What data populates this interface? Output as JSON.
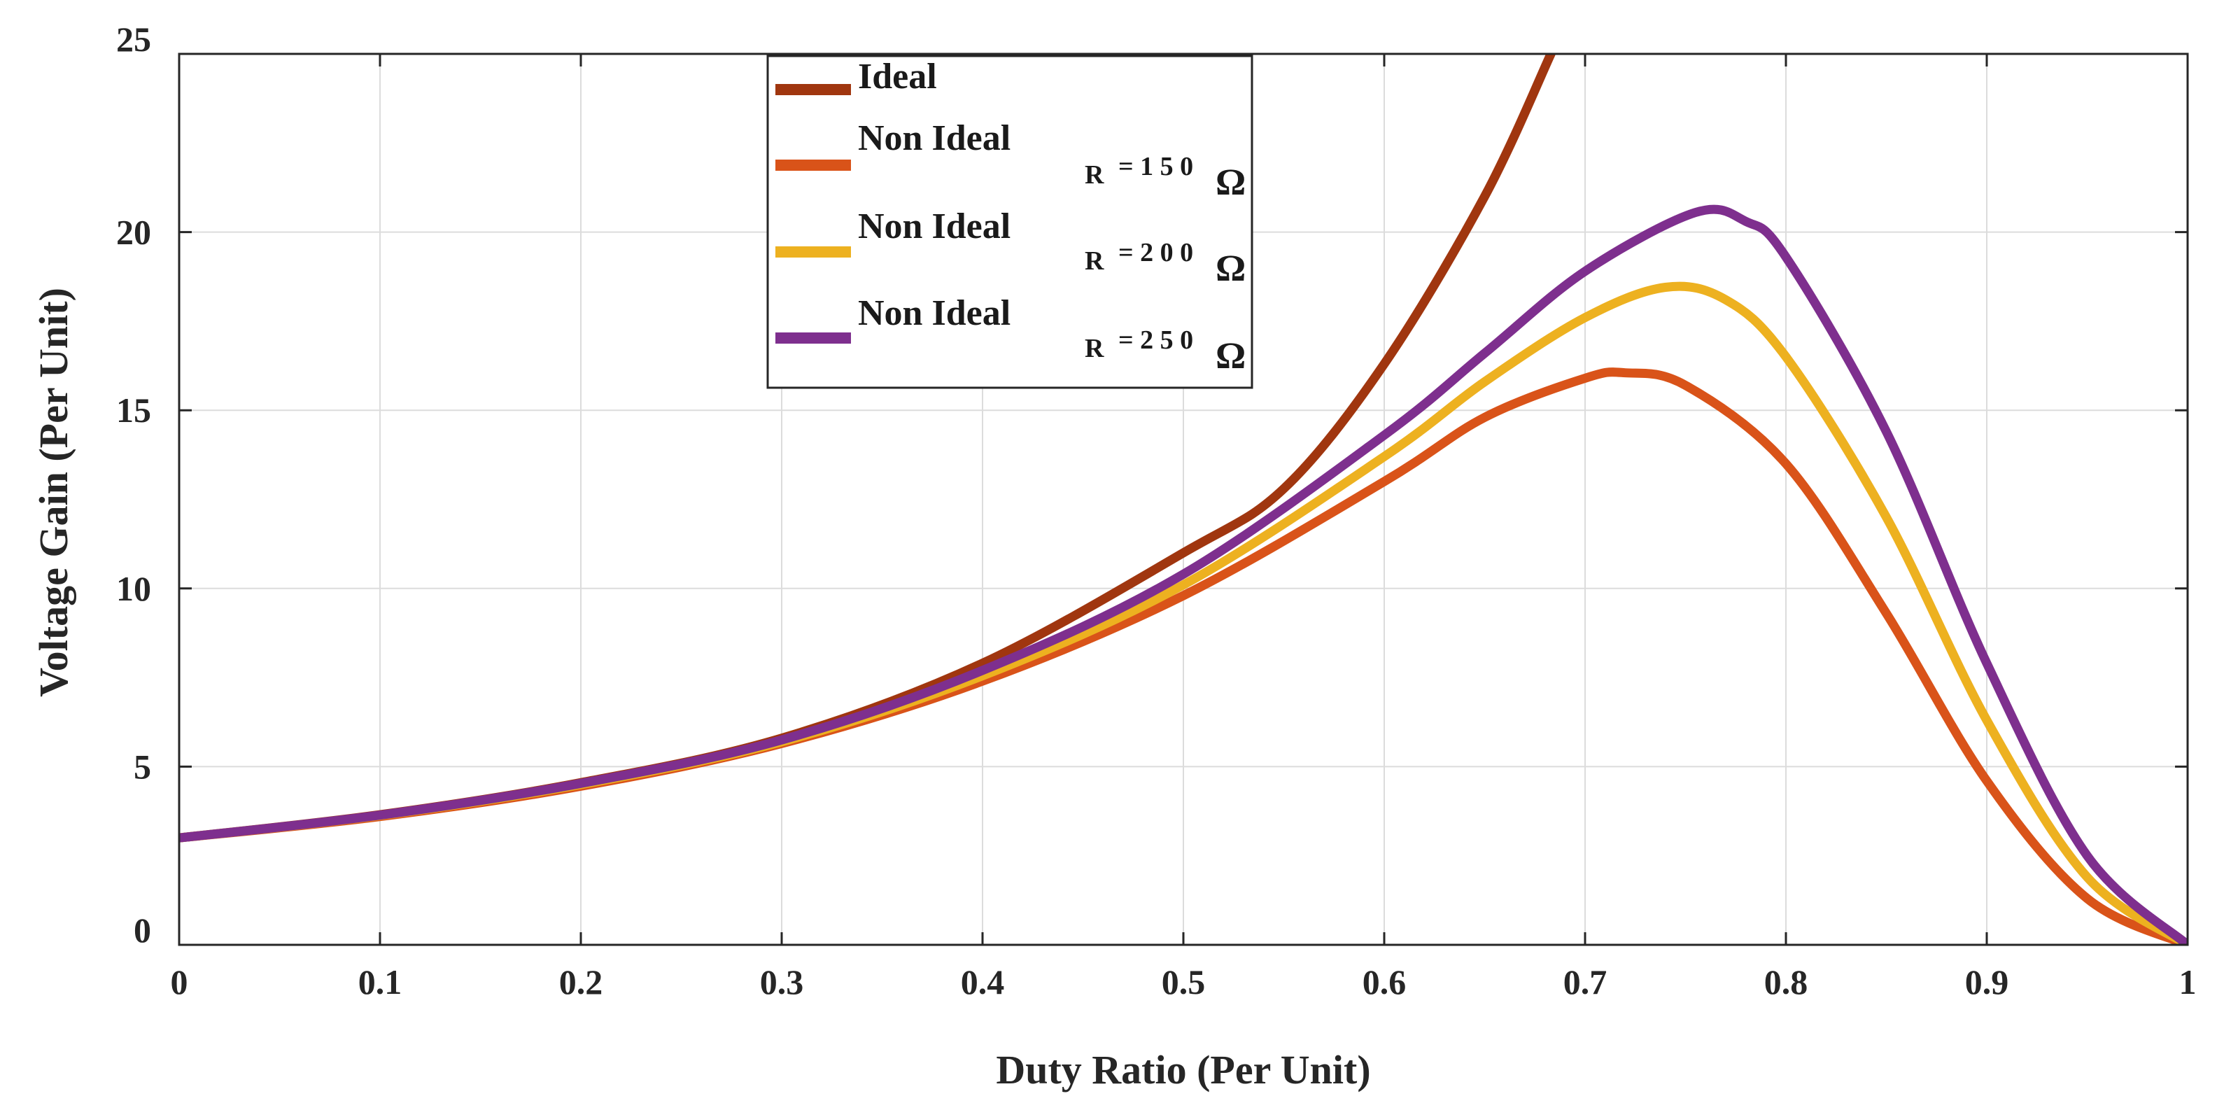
{
  "chart_data": {
    "type": "line",
    "title": "",
    "xlabel": "Duty Ratio (Per Unit)",
    "ylabel": "Voltage Gain (Per Unit)",
    "xlim": [
      0,
      1
    ],
    "ylim": [
      0,
      25
    ],
    "x_ticks": [
      0,
      0.1,
      0.2,
      0.3,
      0.4,
      0.5,
      0.6,
      0.7,
      0.8,
      0.9,
      1
    ],
    "x_tick_labels": [
      "0",
      "0.1",
      "0.2",
      "0.3",
      "0.4",
      "0.5",
      "0.6",
      "0.7",
      "0.8",
      "0.9",
      "1"
    ],
    "y_ticks": [
      0,
      5,
      10,
      15,
      20,
      25
    ],
    "y_tick_labels": [
      "0",
      "5",
      "10",
      "15",
      "20",
      "25"
    ],
    "grid": true,
    "legend_position": "top-center",
    "series": [
      {
        "name": "Ideal",
        "color": "#A0360F",
        "points": [
          [
            0,
            3.0
          ],
          [
            0.1,
            3.65
          ],
          [
            0.2,
            4.55
          ],
          [
            0.3,
            5.8
          ],
          [
            0.4,
            7.9
          ],
          [
            0.5,
            11.0
          ],
          [
            0.55,
            12.8
          ],
          [
            0.6,
            16.3
          ],
          [
            0.65,
            21.0
          ],
          [
            0.683,
            25.0
          ]
        ]
      },
      {
        "name": "Non Ideal",
        "sub_label": "R = 150 Ω",
        "sub_prefix": "R",
        "sub_value": "= 1 5 0",
        "sub_unit": "Ω",
        "color": "#D95319",
        "points": [
          [
            0,
            3.0
          ],
          [
            0.1,
            3.6
          ],
          [
            0.2,
            4.45
          ],
          [
            0.3,
            5.65
          ],
          [
            0.4,
            7.4
          ],
          [
            0.5,
            9.8
          ],
          [
            0.6,
            13.0
          ],
          [
            0.65,
            14.8
          ],
          [
            0.7,
            15.9
          ],
          [
            0.72,
            16.05
          ],
          [
            0.75,
            15.7
          ],
          [
            0.8,
            13.5
          ],
          [
            0.85,
            9.3
          ],
          [
            0.9,
            4.6
          ],
          [
            0.95,
            1.3
          ],
          [
            1.0,
            0.0
          ]
        ]
      },
      {
        "name": "Non Ideal",
        "sub_label": "R = 200 Ω",
        "sub_prefix": "R",
        "sub_value": "= 2 0 0",
        "sub_unit": "Ω",
        "color": "#EDB120",
        "points": [
          [
            0,
            3.0
          ],
          [
            0.1,
            3.63
          ],
          [
            0.2,
            4.5
          ],
          [
            0.3,
            5.7
          ],
          [
            0.4,
            7.55
          ],
          [
            0.5,
            10.1
          ],
          [
            0.6,
            13.7
          ],
          [
            0.65,
            15.8
          ],
          [
            0.7,
            17.6
          ],
          [
            0.74,
            18.45
          ],
          [
            0.77,
            18.1
          ],
          [
            0.8,
            16.5
          ],
          [
            0.85,
            12.0
          ],
          [
            0.9,
            6.3
          ],
          [
            0.95,
            1.9
          ],
          [
            1.0,
            0.0
          ]
        ]
      },
      {
        "name": "Non Ideal",
        "sub_label": "R = 250 Ω",
        "sub_prefix": "R",
        "sub_value": "= 2 5 0",
        "sub_unit": "Ω",
        "color": "#7E2F8E",
        "points": [
          [
            0,
            3.0
          ],
          [
            0.1,
            3.64
          ],
          [
            0.2,
            4.53
          ],
          [
            0.3,
            5.75
          ],
          [
            0.4,
            7.7
          ],
          [
            0.5,
            10.4
          ],
          [
            0.6,
            14.3
          ],
          [
            0.65,
            16.6
          ],
          [
            0.7,
            18.9
          ],
          [
            0.755,
            20.55
          ],
          [
            0.78,
            20.3
          ],
          [
            0.8,
            19.3
          ],
          [
            0.85,
            14.4
          ],
          [
            0.9,
            7.9
          ],
          [
            0.95,
            2.5
          ],
          [
            1.0,
            0.0
          ]
        ]
      }
    ]
  }
}
